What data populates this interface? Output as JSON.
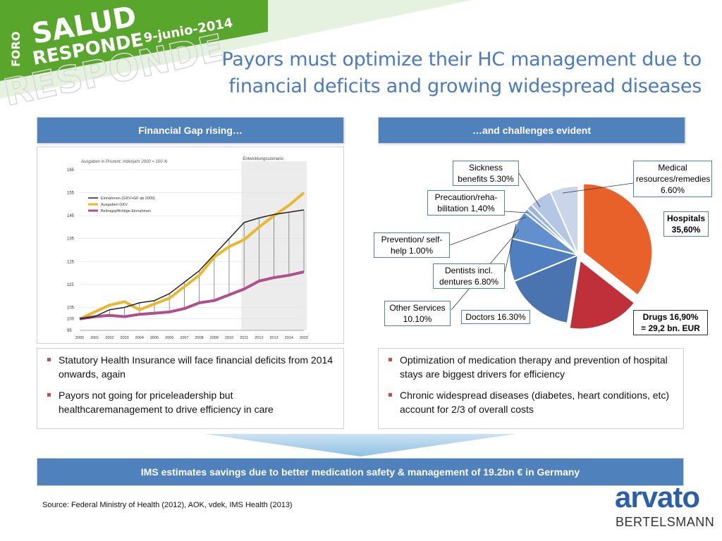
{
  "banner": {
    "foro": "FORO",
    "salud": "SALUD",
    "responde": "RESPONDE",
    "date": "9-junio-2014",
    "bg_color": "#5aa62c"
  },
  "title": {
    "line1": "Payors must optimize their HC management due to",
    "line2": "financial deficits and growing widespread diseases"
  },
  "left_header": "Financial Gap rising…",
  "right_header": "…and challenges evident",
  "line_chart": {
    "caption": "Ausgaben in Prozent; Indexjahr 2000 = 100 %",
    "scenario_label": "Entwicklungsszenario",
    "legend": [
      "Einnahmen (GKV+GF ab 2009)",
      "Ausgaben GKV",
      "Beitragspflichtige Einnahmen"
    ]
  },
  "pie_labels": {
    "sickness": "Sickness benefits 5.30%",
    "medical": "Medical resources/remedies 6.60%",
    "precaution": "Precaution/reha-bilitation 1,40%",
    "hospitals": "Hospitals 35,60%",
    "prevention": "Prevention/ self-help 1.00%",
    "dentists": "Dentists incl. dentures  6.80%",
    "other": "Other Services 10.10%",
    "doctors": "Doctors 16.30%",
    "drugs_line1": "Drugs 16,90%",
    "drugs_line2": "= 29,2 bn. EUR"
  },
  "left_bullets": [
    "Statutory Health Insurance will face financial deficits from 2014 onwards, again",
    "Payors not going for priceleadership but healthcaremanagement to drive efficiency in care"
  ],
  "right_bullets": [
    "Optimization of medication therapy and prevention of hospital stays are biggest drivers for  efficiency",
    "Chronic widespread diseases (diabetes, heart conditions, etc) account for 2/3 of overall costs"
  ],
  "bottom_bar": "IMS estimates savings due to better medication safety & management of 19.2bn € in Germany",
  "source": "Source: Federal Ministry of Health (2012), AOK, vdek, IMS Health (2013)",
  "logo": {
    "name": "arvato",
    "sub": "BERTELSMANN"
  },
  "chart_data": [
    {
      "type": "line",
      "title": "",
      "xlabel": "",
      "ylabel": "",
      "x": [
        2000,
        2001,
        2002,
        2003,
        2004,
        2005,
        2006,
        2007,
        2008,
        2009,
        2010,
        2011,
        2012,
        2013,
        2014,
        2015
      ],
      "yticks": [
        95,
        100,
        105,
        115,
        125,
        135,
        145,
        155,
        165
      ],
      "ylim": [
        95,
        165
      ],
      "grid": true,
      "legend_position": "top-left",
      "shaded_x_range": [
        2011,
        2015
      ],
      "series": [
        {
          "name": "Einnahmen (GKV+GF ab 2009)",
          "color": "#222222",
          "values": [
            100,
            101,
            104,
            105,
            107,
            108,
            111,
            116,
            121,
            128,
            135,
            142,
            144,
            145.5,
            146.5,
            147.5
          ]
        },
        {
          "name": "Ausgaben GKV",
          "color": "#e8b830",
          "values": [
            100,
            103,
            106,
            107.5,
            104,
            106.5,
            109,
            114,
            119,
            127,
            131.5,
            134.5,
            140,
            145,
            149.5,
            155
          ]
        },
        {
          "name": "Beitragspflichtige Einnahmen",
          "color": "#b0508a",
          "values": [
            100,
            101,
            101.5,
            101,
            102,
            102.5,
            103,
            104.5,
            107,
            108,
            110.5,
            113,
            116.5,
            118,
            119,
            120.5
          ]
        }
      ]
    },
    {
      "type": "pie",
      "title": "",
      "categories": [
        "Hospitals",
        "Drugs",
        "Doctors",
        "Other Services",
        "Dentists incl. dentures",
        "Prevention/ self-help",
        "Precaution/reha-bilitation",
        "Sickness benefits",
        "Medical resources/remedies"
      ],
      "values": [
        35.6,
        16.9,
        16.3,
        10.1,
        6.8,
        1.0,
        1.4,
        5.3,
        6.6
      ],
      "colors": [
        "#e8602a",
        "#c0303a",
        "#4a74b0",
        "#4f7fc0",
        "#6290cc",
        "#7fa3d6",
        "#9ab5de",
        "#b3c6e4",
        "#c9d6ea"
      ]
    }
  ]
}
